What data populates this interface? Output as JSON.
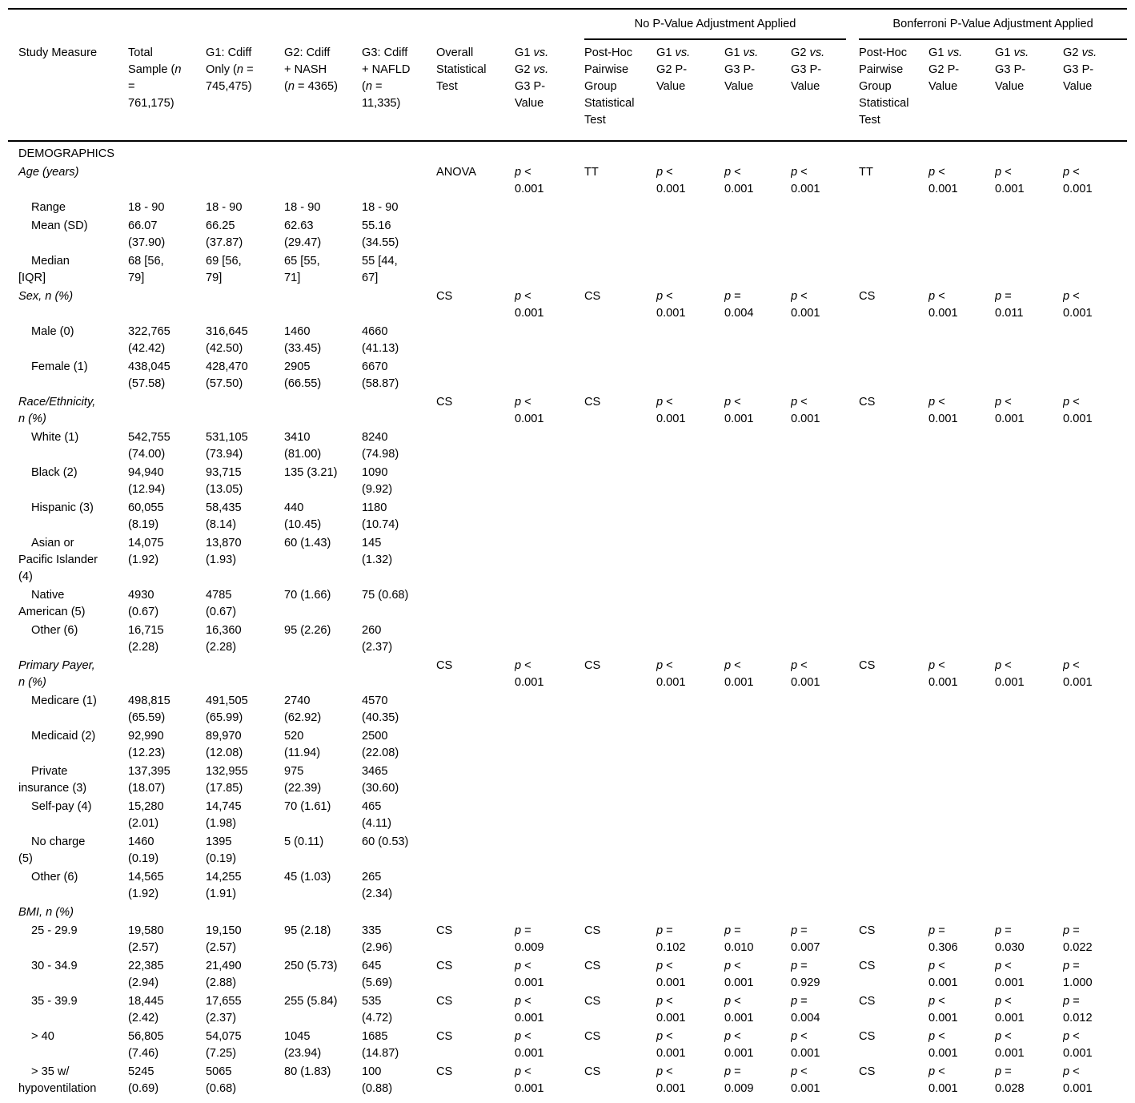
{
  "table": {
    "top_header": {
      "no_adjust": "No P-Value Adjustment Applied",
      "bonferroni": "Bonferroni P-Value Adjustment Applied"
    },
    "columns": [
      "Study Measure",
      "Total Sample (n = 761,175)",
      "G1: Cdiff Only (n = 745,475)",
      "G2: Cdiff + NASH (n = 4365)",
      "G3: Cdiff + NAFLD (n = 11,335)",
      "Overall Statistical Test",
      "G1 vs. G2 vs. G3 P-Value",
      "Post-Hoc Pairwise Group Statistical Test",
      "G1 vs. G2 P-Value",
      "G1 vs. G3 P-Value",
      "G2 vs. G3 P-Value",
      "Post-Hoc Pairwise Group Statistical Test",
      "G1 vs. G2 P-Value",
      "G1 vs. G3 P-Value",
      "G2 vs. G3 P-Value"
    ],
    "rows": [
      {
        "kind": "section",
        "label": "DEMOGRAPHICS",
        "cells": [
          "",
          "",
          "",
          "",
          "",
          "",
          "",
          "",
          "",
          "",
          "",
          "",
          "",
          ""
        ]
      },
      {
        "kind": "measure",
        "label": "Age (years)",
        "cells": [
          "",
          "",
          "",
          "",
          "ANOVA",
          "p < 0.001",
          "TT",
          "p < 0.001",
          "p < 0.001",
          "p < 0.001",
          "TT",
          "p < 0.001",
          "p < 0.001",
          "p < 0.001"
        ]
      },
      {
        "kind": "sub",
        "label": "Range",
        "cells": [
          "18 - 90",
          "18 - 90",
          "18 - 90",
          "18 - 90",
          "",
          "",
          "",
          "",
          "",
          "",
          "",
          "",
          "",
          ""
        ]
      },
      {
        "kind": "sub",
        "label": "Mean (SD)",
        "cells": [
          "66.07 (37.90)",
          "66.25 (37.87)",
          "62.63 (29.47)",
          "55.16 (34.55)",
          "",
          "",
          "",
          "",
          "",
          "",
          "",
          "",
          "",
          ""
        ]
      },
      {
        "kind": "sub",
        "label": "Median [IQR]",
        "cells": [
          "68 [56, 79]",
          "69 [56, 79]",
          "65 [55, 71]",
          "55 [44, 67]",
          "",
          "",
          "",
          "",
          "",
          "",
          "",
          "",
          "",
          ""
        ]
      },
      {
        "kind": "measure",
        "label": "Sex, n (%)",
        "cells": [
          "",
          "",
          "",
          "",
          "CS",
          "p < 0.001",
          "CS",
          "p < 0.001",
          "p = 0.004",
          "p < 0.001",
          "CS",
          "p < 0.001",
          "p = 0.011",
          "p < 0.001"
        ]
      },
      {
        "kind": "sub",
        "label": "Male (0)",
        "cells": [
          "322,765 (42.42)",
          "316,645 (42.50)",
          "1460 (33.45)",
          "4660 (41.13)",
          "",
          "",
          "",
          "",
          "",
          "",
          "",
          "",
          "",
          ""
        ]
      },
      {
        "kind": "sub",
        "label": "Female (1)",
        "cells": [
          "438,045 (57.58)",
          "428,470 (57.50)",
          "2905 (66.55)",
          "6670 (58.87)",
          "",
          "",
          "",
          "",
          "",
          "",
          "",
          "",
          "",
          ""
        ]
      },
      {
        "kind": "measure",
        "label": "Race/Ethnicity, n (%)",
        "cells": [
          "",
          "",
          "",
          "",
          "CS",
          "p < 0.001",
          "CS",
          "p < 0.001",
          "p < 0.001",
          "p < 0.001",
          "CS",
          "p < 0.001",
          "p < 0.001",
          "p < 0.001"
        ]
      },
      {
        "kind": "sub",
        "label": "White (1)",
        "cells": [
          "542,755 (74.00)",
          "531,105 (73.94)",
          "3410 (81.00)",
          "8240 (74.98)",
          "",
          "",
          "",
          "",
          "",
          "",
          "",
          "",
          "",
          ""
        ]
      },
      {
        "kind": "sub",
        "label": "Black (2)",
        "cells": [
          "94,940 (12.94)",
          "93,715 (13.05)",
          "135 (3.21)",
          "1090 (9.92)",
          "",
          "",
          "",
          "",
          "",
          "",
          "",
          "",
          "",
          ""
        ]
      },
      {
        "kind": "sub",
        "label": "Hispanic (3)",
        "cells": [
          "60,055 (8.19)",
          "58,435 (8.14)",
          "440 (10.45)",
          "1180 (10.74)",
          "",
          "",
          "",
          "",
          "",
          "",
          "",
          "",
          "",
          ""
        ]
      },
      {
        "kind": "sub",
        "label": "Asian or Pacific Islander (4)",
        "cells": [
          "14,075 (1.92)",
          "13,870 (1.93)",
          "60 (1.43)",
          "145 (1.32)",
          "",
          "",
          "",
          "",
          "",
          "",
          "",
          "",
          "",
          ""
        ]
      },
      {
        "kind": "sub",
        "label": "Native American (5)",
        "cells": [
          "4930 (0.67)",
          "4785 (0.67)",
          "70 (1.66)",
          "75 (0.68)",
          "",
          "",
          "",
          "",
          "",
          "",
          "",
          "",
          "",
          ""
        ]
      },
      {
        "kind": "sub",
        "label": "Other (6)",
        "cells": [
          "16,715 (2.28)",
          "16,360 (2.28)",
          "95 (2.26)",
          "260 (2.37)",
          "",
          "",
          "",
          "",
          "",
          "",
          "",
          "",
          "",
          ""
        ]
      },
      {
        "kind": "measure",
        "label": "Primary Payer, n (%)",
        "cells": [
          "",
          "",
          "",
          "",
          "CS",
          "p < 0.001",
          "CS",
          "p < 0.001",
          "p < 0.001",
          "p < 0.001",
          "CS",
          "p < 0.001",
          "p < 0.001",
          "p < 0.001"
        ]
      },
      {
        "kind": "sub",
        "label": "Medicare (1)",
        "cells": [
          "498,815 (65.59)",
          "491,505 (65.99)",
          "2740 (62.92)",
          "4570 (40.35)",
          "",
          "",
          "",
          "",
          "",
          "",
          "",
          "",
          "",
          ""
        ]
      },
      {
        "kind": "sub",
        "label": "Medicaid (2)",
        "cells": [
          "92,990 (12.23)",
          "89,970 (12.08)",
          "520 (11.94)",
          "2500 (22.08)",
          "",
          "",
          "",
          "",
          "",
          "",
          "",
          "",
          "",
          ""
        ]
      },
      {
        "kind": "sub",
        "label": "Private insurance (3)",
        "cells": [
          "137,395 (18.07)",
          "132,955 (17.85)",
          "975 (22.39)",
          "3465 (30.60)",
          "",
          "",
          "",
          "",
          "",
          "",
          "",
          "",
          "",
          ""
        ]
      },
      {
        "kind": "sub",
        "label": "Self-pay (4)",
        "cells": [
          "15,280 (2.01)",
          "14,745 (1.98)",
          "70 (1.61)",
          "465 (4.11)",
          "",
          "",
          "",
          "",
          "",
          "",
          "",
          "",
          "",
          ""
        ]
      },
      {
        "kind": "sub",
        "label": "No charge (5)",
        "cells": [
          "1460 (0.19)",
          "1395 (0.19)",
          "5 (0.11)",
          "60 (0.53)",
          "",
          "",
          "",
          "",
          "",
          "",
          "",
          "",
          "",
          ""
        ]
      },
      {
        "kind": "sub",
        "label": "Other (6)",
        "cells": [
          "14,565 (1.92)",
          "14,255 (1.91)",
          "45 (1.03)",
          "265 (2.34)",
          "",
          "",
          "",
          "",
          "",
          "",
          "",
          "",
          "",
          ""
        ]
      },
      {
        "kind": "measure",
        "label": "BMI, n (%)",
        "cells": [
          "",
          "",
          "",
          "",
          "",
          "",
          "",
          "",
          "",
          "",
          "",
          "",
          "",
          ""
        ]
      },
      {
        "kind": "sub",
        "label": "25 - 29.9",
        "cells": [
          "19,580 (2.57)",
          "19,150 (2.57)",
          "95 (2.18)",
          "335 (2.96)",
          "CS",
          "p = 0.009",
          "CS",
          "p = 0.102",
          "p = 0.010",
          "p = 0.007",
          "CS",
          "p = 0.306",
          "p = 0.030",
          "p = 0.022"
        ]
      },
      {
        "kind": "sub",
        "label": "30 - 34.9",
        "cells": [
          "22,385 (2.94)",
          "21,490 (2.88)",
          "250 (5.73)",
          "645 (5.69)",
          "CS",
          "p < 0.001",
          "CS",
          "p < 0.001",
          "p < 0.001",
          "p = 0.929",
          "CS",
          "p < 0.001",
          "p < 0.001",
          "p = 1.000"
        ]
      },
      {
        "kind": "sub",
        "label": "35 - 39.9",
        "cells": [
          "18,445 (2.42)",
          "17,655 (2.37)",
          "255 (5.84)",
          "535 (4.72)",
          "CS",
          "p < 0.001",
          "CS",
          "p < 0.001",
          "p < 0.001",
          "p = 0.004",
          "CS",
          "p < 0.001",
          "p < 0.001",
          "p = 0.012"
        ]
      },
      {
        "kind": "sub",
        "label": "> 40",
        "cells": [
          "56,805 (7.46)",
          "54,075 (7.25)",
          "1045 (23.94)",
          "1685 (14.87)",
          "CS",
          "p < 0.001",
          "CS",
          "p < 0.001",
          "p < 0.001",
          "p < 0.001",
          "CS",
          "p < 0.001",
          "p < 0.001",
          "p < 0.001"
        ]
      },
      {
        "kind": "sub",
        "label": "> 35 w/ hypoventilation",
        "cells": [
          "5245 (0.69)",
          "5065 (0.68)",
          "80 (1.83)",
          "100 (0.88)",
          "CS",
          "p < 0.001",
          "CS",
          "p < 0.001",
          "p = 0.009",
          "p < 0.001",
          "CS",
          "p < 0.001",
          "p = 0.028",
          "p < 0.001"
        ]
      }
    ]
  }
}
